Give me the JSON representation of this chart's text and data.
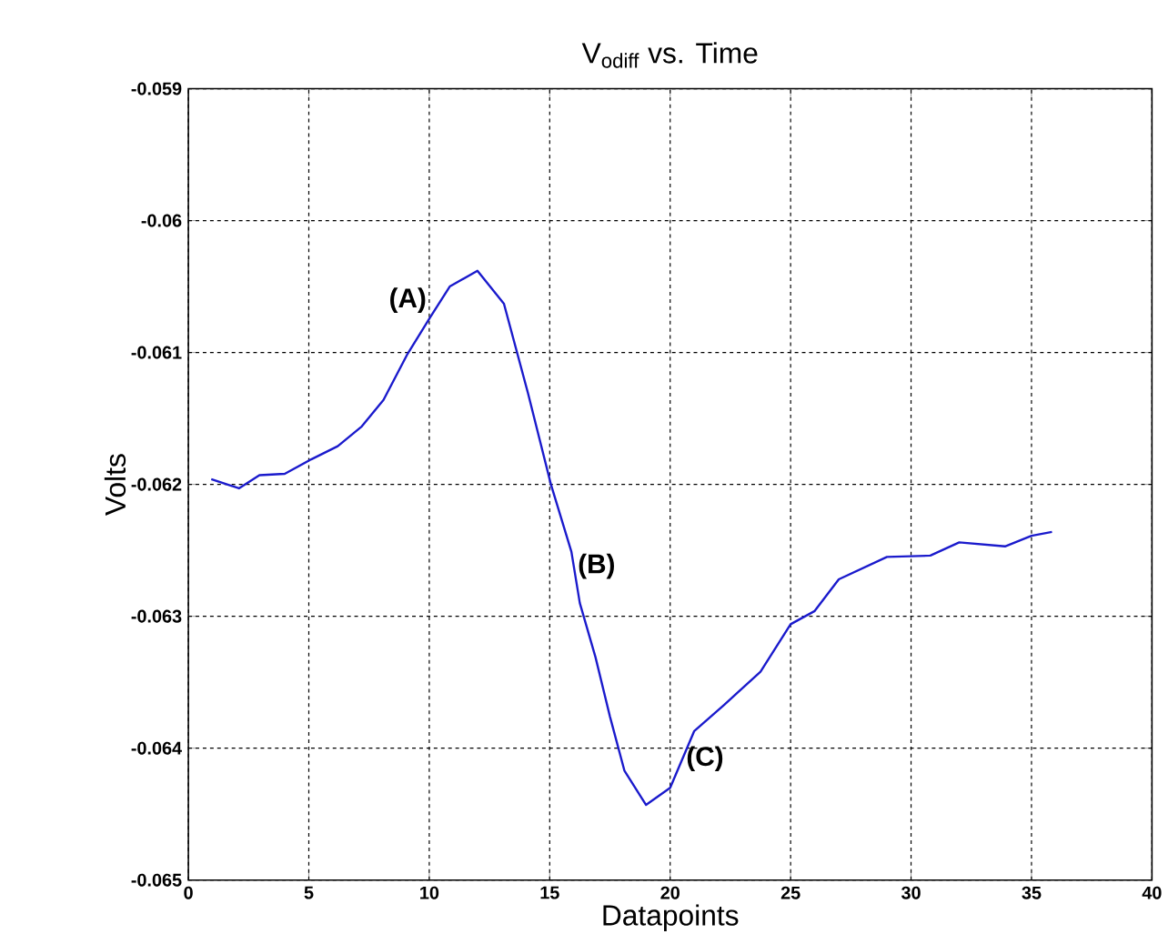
{
  "chart_data": {
    "type": "line",
    "title": "V$_{odiff}$ vs. Time",
    "xlabel": "Datapoints",
    "ylabel": "Volts",
    "xlim": [
      0,
      40
    ],
    "xticks": [
      0,
      5,
      10,
      15,
      20,
      25,
      30,
      35,
      40
    ],
    "ylim": [
      -0.065,
      -0.059
    ],
    "yticks": [
      -0.065,
      -0.064,
      -0.063,
      -0.062,
      -0.061,
      -0.06,
      -0.059
    ],
    "grid": true,
    "series": [
      {
        "color": "#1a1acc",
        "x": [
          0.95,
          2.1,
          2.95,
          4.0,
          5.1,
          6.2,
          7.2,
          8.1,
          9.1,
          10.05,
          10.85,
          12.0,
          13.1,
          14.1,
          15.05,
          15.9,
          16.25,
          16.9,
          17.5,
          18.1,
          19.0,
          20.0,
          21.0,
          22.25,
          23.75,
          25.0,
          26.0,
          27.0,
          29.0,
          30.8,
          32.0,
          33.9,
          35.0,
          35.85
        ],
        "values": [
          -0.06196,
          -0.06203,
          -0.06193,
          -0.06192,
          -0.06181,
          -0.06171,
          -0.06156,
          -0.06136,
          -0.06101,
          -0.06073,
          -0.0605,
          -0.06038,
          -0.06063,
          -0.06131,
          -0.062,
          -0.06251,
          -0.0629,
          -0.06331,
          -0.06376,
          -0.06417,
          -0.06443,
          -0.0643,
          -0.06387,
          -0.06367,
          -0.06342,
          -0.06306,
          -0.06296,
          -0.06272,
          -0.06255,
          -0.06254,
          -0.06244,
          -0.06247,
          -0.06239,
          -0.06236
        ]
      }
    ],
    "annotations": [
      {
        "text": "(A)",
        "x": 10.05,
        "y": -0.06073
      },
      {
        "text": "(B)",
        "x": 16.0,
        "y": -0.06262
      },
      {
        "text": "(C)",
        "x": 20.5,
        "y": -0.06408
      }
    ]
  }
}
